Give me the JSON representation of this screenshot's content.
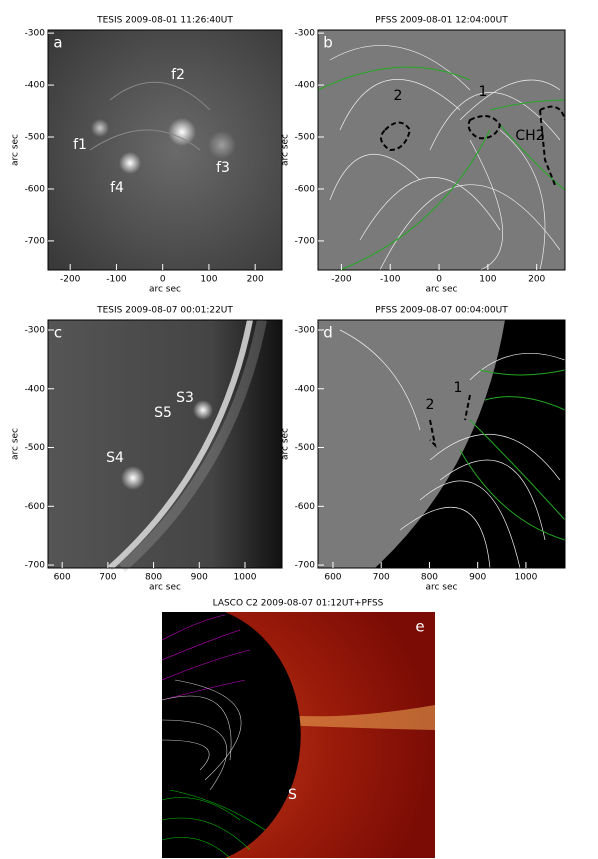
{
  "panels": [
    {
      "title": "TESIS 2009-08-01 11:26:40UT",
      "letter": "a",
      "xlabel": "arc sec",
      "ylabel": "arc sec",
      "xlim": [
        -248,
        258
      ],
      "ylim": [
        -756,
        -294
      ],
      "xticks": [
        -200,
        -100,
        0,
        100,
        200
      ],
      "yticks": [
        -300,
        -400,
        -500,
        -600,
        -700
      ],
      "annotations": [
        "f1",
        "f2",
        "f3",
        "f4"
      ]
    },
    {
      "title": "PFSS   2009-08-01 12:04:00UT",
      "letter": "b",
      "xlabel": "arc sec",
      "ylabel": "arc sec",
      "xlim": [
        -248,
        258
      ],
      "ylim": [
        -756,
        -294
      ],
      "xticks": [
        -200,
        -100,
        0,
        100,
        200
      ],
      "yticks": [
        -300,
        -400,
        -500,
        -600,
        -700
      ],
      "annotations": [
        "1",
        "2",
        "CH2"
      ]
    },
    {
      "title": "TESIS 2009-08-07 00:01:22UT",
      "letter": "c",
      "xlabel": "arc sec",
      "ylabel": "arc sec",
      "xlim": [
        569,
        1081
      ],
      "ylim": [
        -705,
        -283
      ],
      "xticks": [
        600,
        700,
        800,
        900,
        1000
      ],
      "yticks": [
        -300,
        -400,
        -500,
        -600,
        -700
      ],
      "annotations": [
        "S3",
        "S5",
        "S4"
      ]
    },
    {
      "title": "PFSS   2009-08-07 00:04:00UT",
      "letter": "d",
      "xlabel": "arc sec",
      "ylabel": "arc sec",
      "xlim": [
        569,
        1081
      ],
      "ylim": [
        -705,
        -283
      ],
      "xticks": [
        600,
        700,
        800,
        900,
        1000
      ],
      "yticks": [
        -300,
        -400,
        -500,
        -600,
        -700
      ],
      "annotations": [
        "2",
        "1"
      ]
    }
  ],
  "panel_e": {
    "title": "LASCO C2 2009-08-07 01:12UT+PFSS",
    "letter": "e",
    "annotations": [
      "S"
    ]
  }
}
